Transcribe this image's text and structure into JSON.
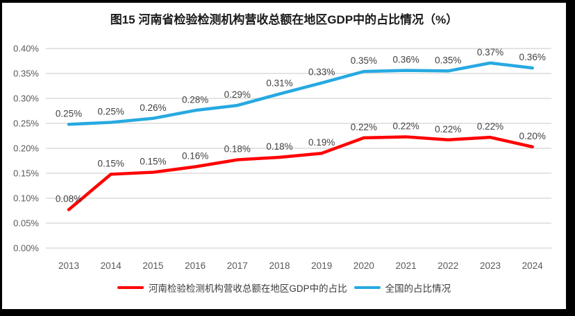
{
  "chart_data": {
    "type": "line",
    "title": "图15  河南省检验检测机构营收总额在地区GDP中的占比情况（%）",
    "categories": [
      "2013",
      "2014",
      "2015",
      "2016",
      "2017",
      "2018",
      "2019",
      "2020",
      "2021",
      "2022",
      "2023",
      "2024"
    ],
    "y_ticks": [
      "0.40%",
      "0.35%",
      "0.30%",
      "0.25%",
      "0.20%",
      "0.15%",
      "0.10%",
      "0.05%",
      "0.00%"
    ],
    "ylim": [
      0,
      0.4
    ],
    "y_tick_step": 0.05,
    "grid": "horizontal",
    "legend_position": "bottom",
    "gridline_color": "#DBDBDB",
    "series": [
      {
        "name": "河南检验检测机构营收总额在地区GDP中的占比",
        "color": "#FF0000",
        "point_labels": [
          "0.08%",
          "0.15%",
          "0.15%",
          "0.16%",
          "0.18%",
          "0.18%",
          "0.19%",
          "0.22%",
          "0.22%",
          "0.22%",
          "0.22%",
          "0.20%"
        ],
        "values": [
          0.077,
          0.148,
          0.152,
          0.163,
          0.177,
          0.182,
          0.19,
          0.221,
          0.223,
          0.217,
          0.222,
          0.203
        ]
      },
      {
        "name": "全国的占比情况",
        "color": "#27A9E1",
        "point_labels": [
          "0.25%",
          "0.25%",
          "0.26%",
          "0.28%",
          "0.29%",
          "0.31%",
          "0.33%",
          "0.35%",
          "0.36%",
          "0.35%",
          "0.37%",
          "0.36%"
        ],
        "values": [
          0.248,
          0.252,
          0.26,
          0.276,
          0.286,
          0.309,
          0.331,
          0.354,
          0.356,
          0.355,
          0.371,
          0.361
        ]
      }
    ]
  }
}
